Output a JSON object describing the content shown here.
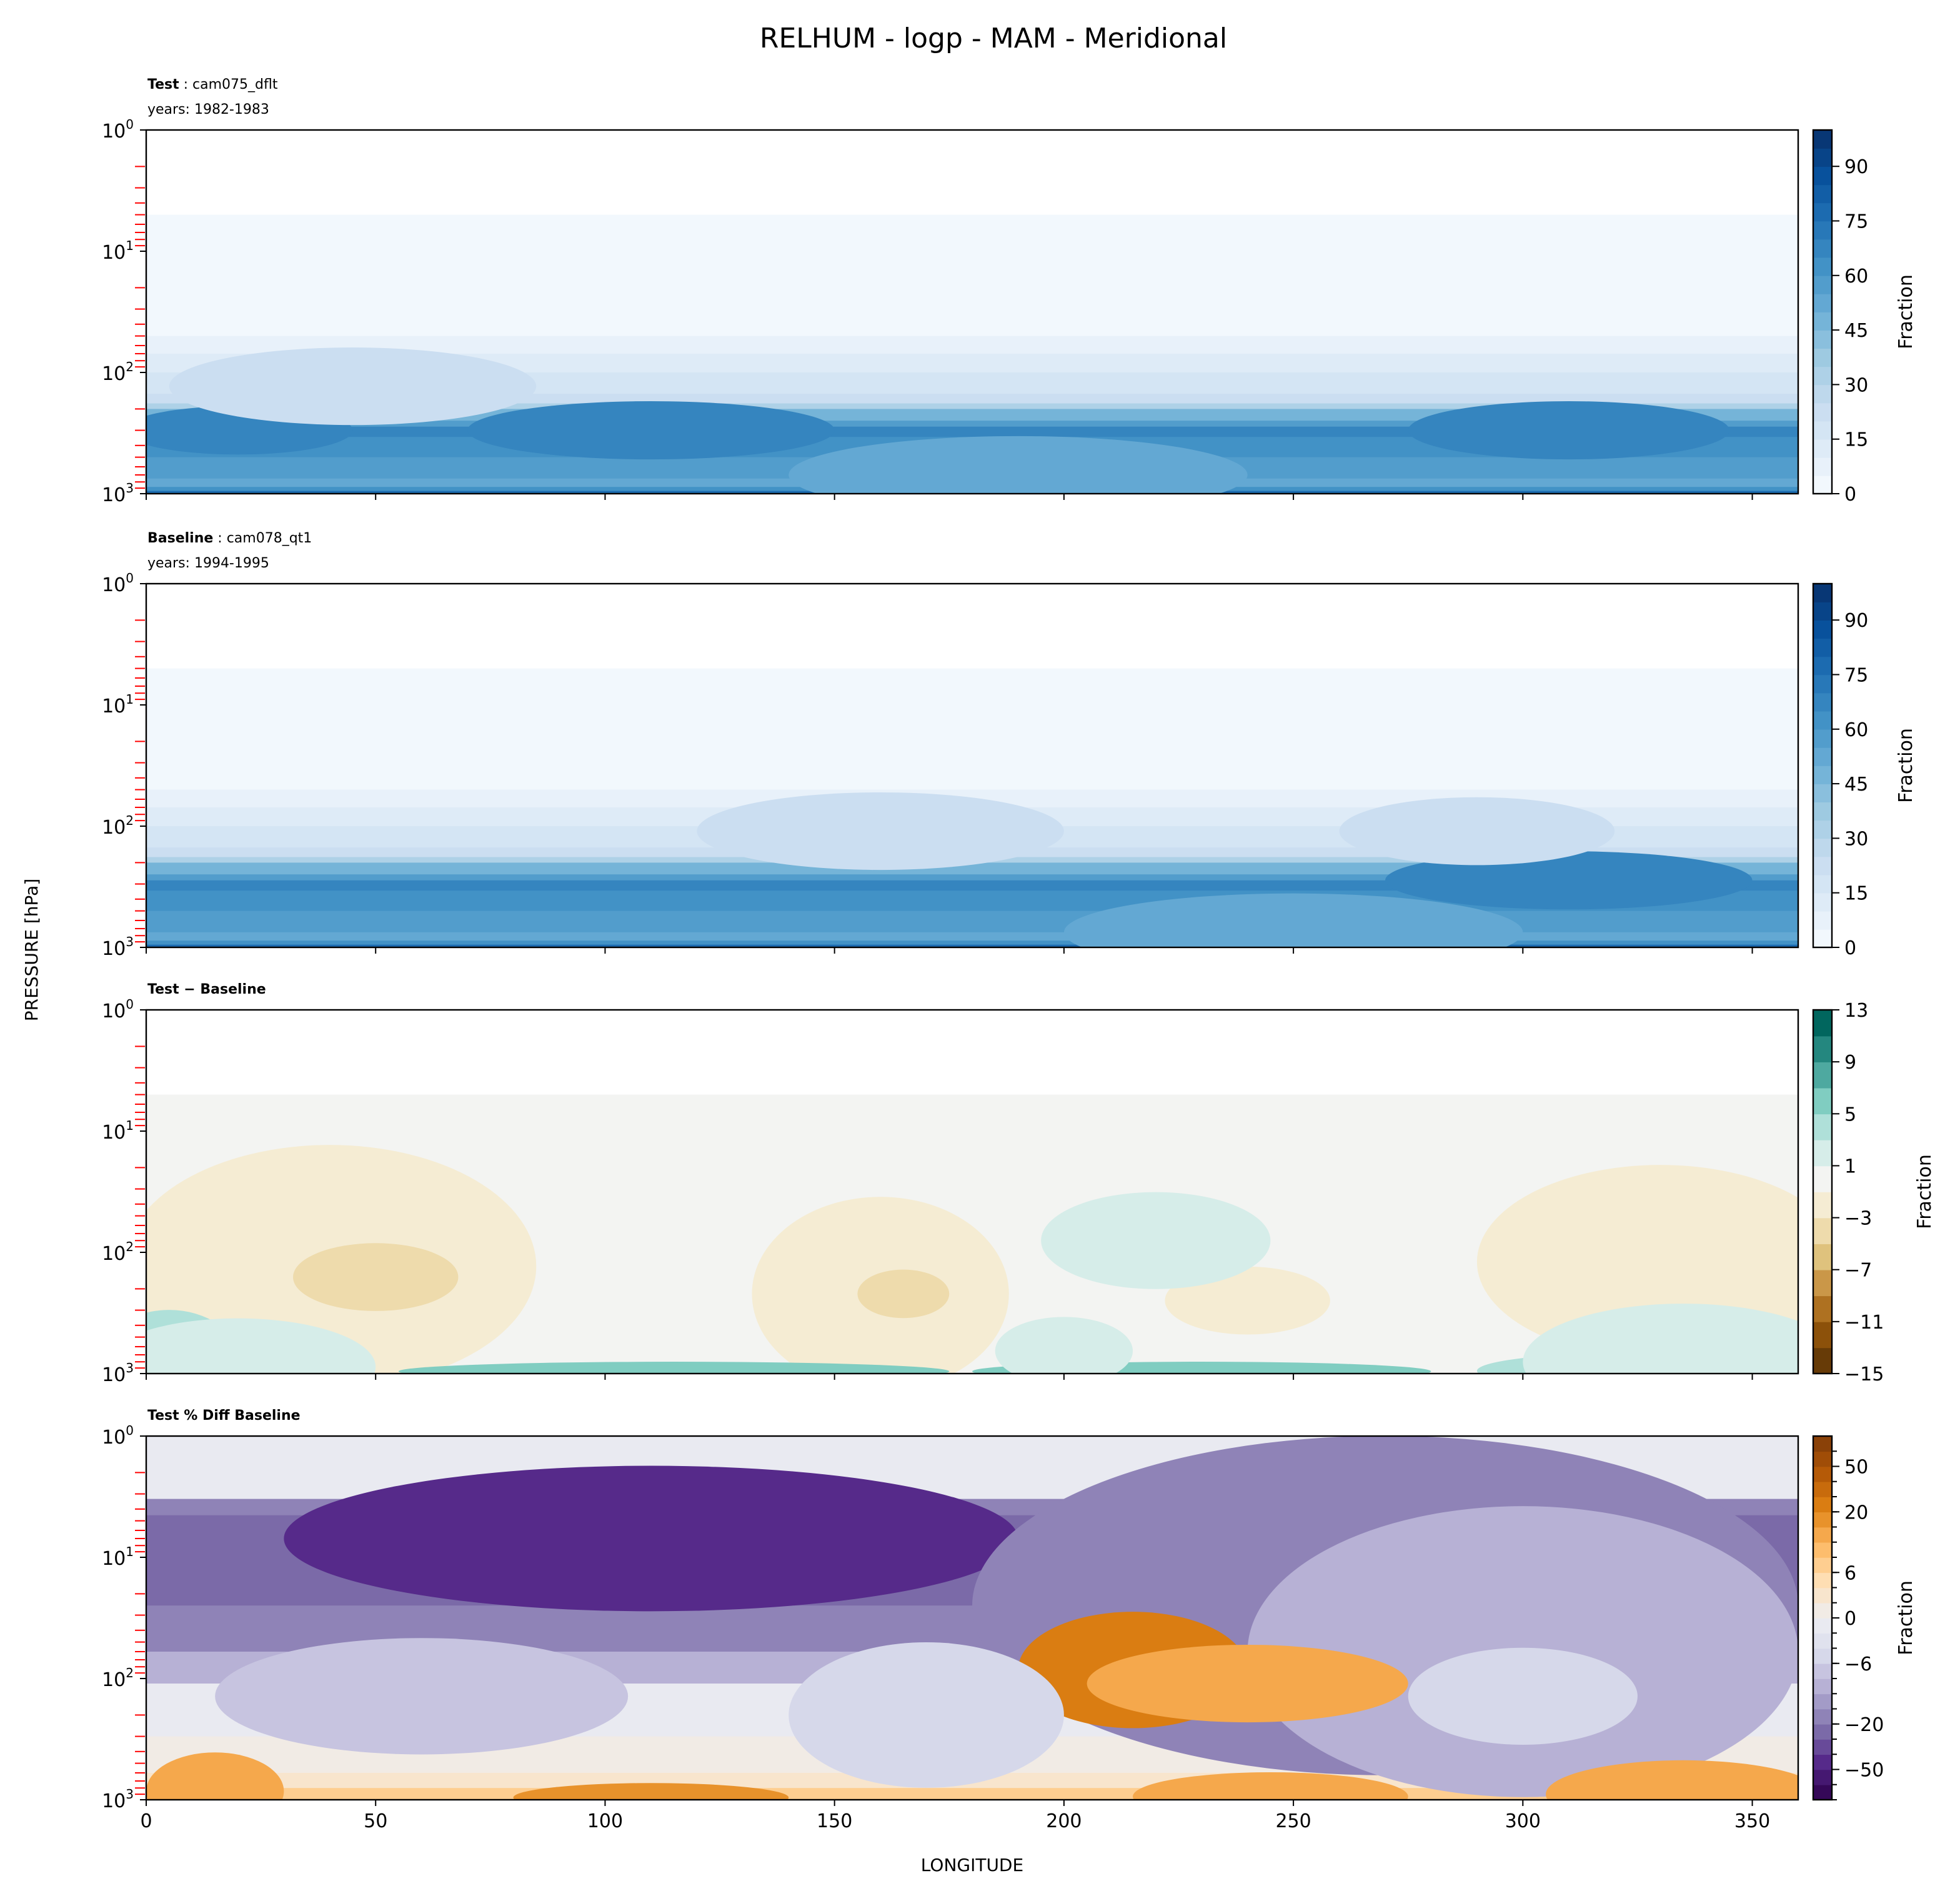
{
  "chart_data": {
    "type": "heatmap",
    "title": "RELHUM - logp - MAM - Meridional",
    "xlabel": "LONGITUDE",
    "ylabel": "PRESSURE [hPa]",
    "xlim": [
      0,
      360
    ],
    "xticks": [
      0,
      50,
      100,
      150,
      200,
      250,
      300,
      350
    ],
    "ylim": [
      1000,
      1
    ],
    "yscale": "log",
    "yticks": [
      {
        "base": "10",
        "exp": "0",
        "value": 1
      },
      {
        "base": "10",
        "exp": "1",
        "value": 10
      },
      {
        "base": "10",
        "exp": "2",
        "value": 100
      },
      {
        "base": "10",
        "exp": "3",
        "value": 1000
      }
    ],
    "panels": [
      {
        "title_bold": "Test",
        "title_rest": " : cam075_dflt",
        "subtitle": "years: 1982-1983",
        "cmap": "blues",
        "clim": [
          0,
          100
        ],
        "levels_step": 5,
        "cbar_ticks": [
          "0",
          "15",
          "30",
          "45",
          "60",
          "75",
          "90"
        ],
        "cbar_tick_values": [
          0,
          15,
          30,
          45,
          60,
          75,
          90
        ],
        "cbar_label": "Fraction",
        "profile": [
          [
            1,
            null
          ],
          [
            5,
            2
          ],
          [
            50,
            6
          ],
          [
            70,
            10
          ],
          [
            100,
            16
          ],
          [
            150,
            22
          ],
          [
            180,
            32
          ],
          [
            200,
            48
          ],
          [
            250,
            58
          ],
          [
            280,
            66
          ],
          [
            340,
            60
          ],
          [
            500,
            58
          ],
          [
            750,
            54
          ],
          [
            880,
            62
          ],
          [
            950,
            75
          ],
          [
            1000,
            88
          ]
        ],
        "features": [
          [
            110,
            300,
            40,
            0.06,
            67
          ],
          [
            20,
            300,
            25,
            0.05,
            66
          ],
          [
            310,
            300,
            35,
            0.06,
            67
          ],
          [
            45,
            130,
            40,
            0.08,
            22
          ],
          [
            190,
            700,
            50,
            0.08,
            50
          ]
        ]
      },
      {
        "title_bold": "Baseline",
        "title_rest": " : cam078_qt1",
        "subtitle": "years: 1994-1995",
        "cmap": "blues",
        "clim": [
          0,
          100
        ],
        "levels_step": 5,
        "cbar_ticks": [
          "0",
          "15",
          "30",
          "45",
          "60",
          "75",
          "90"
        ],
        "cbar_tick_values": [
          0,
          15,
          30,
          45,
          60,
          75,
          90
        ],
        "cbar_label": "Fraction",
        "profile": [
          [
            1,
            null
          ],
          [
            5,
            2
          ],
          [
            50,
            6
          ],
          [
            70,
            10
          ],
          [
            100,
            16
          ],
          [
            150,
            22
          ],
          [
            180,
            32
          ],
          [
            200,
            48
          ],
          [
            250,
            58
          ],
          [
            280,
            66
          ],
          [
            340,
            60
          ],
          [
            500,
            58
          ],
          [
            750,
            54
          ],
          [
            880,
            62
          ],
          [
            950,
            75
          ],
          [
            1000,
            88
          ]
        ],
        "features": [
          [
            310,
            280,
            40,
            0.06,
            67
          ],
          [
            160,
            110,
            40,
            0.08,
            22
          ],
          [
            290,
            110,
            30,
            0.07,
            22
          ],
          [
            250,
            750,
            50,
            0.08,
            50
          ]
        ]
      },
      {
        "title_bold": "Test − Baseline",
        "title_rest": "",
        "subtitle": "",
        "cmap": "brbg",
        "clim": [
          -15,
          13
        ],
        "levels_step": 2,
        "cbar_ticks": [
          "13",
          "9",
          "5",
          "1",
          "−3",
          "−7",
          "−11",
          "−15"
        ],
        "cbar_tick_values": [
          13,
          9,
          5,
          1,
          -3,
          -7,
          -11,
          -15
        ],
        "cbar_label": "Fraction",
        "profile": [
          [
            1,
            null
          ],
          [
            5,
            0
          ],
          [
            1000,
            0
          ]
        ],
        "features": [
          [
            40,
            130,
            45,
            0.25,
            -2.5
          ],
          [
            50,
            160,
            18,
            0.07,
            -5
          ],
          [
            160,
            220,
            28,
            0.2,
            -2.5
          ],
          [
            165,
            220,
            10,
            0.05,
            -5
          ],
          [
            330,
            120,
            40,
            0.2,
            -2.5
          ],
          [
            240,
            250,
            18,
            0.07,
            -2.5
          ],
          [
            220,
            80,
            25,
            0.1,
            2
          ],
          [
            5,
            750,
            15,
            0.1,
            3
          ],
          [
            115,
            960,
            60,
            0.02,
            5
          ],
          [
            230,
            960,
            50,
            0.02,
            5
          ],
          [
            330,
            950,
            40,
            0.04,
            4
          ],
          [
            20,
            880,
            30,
            0.1,
            2
          ],
          [
            335,
            800,
            35,
            0.12,
            2
          ],
          [
            200,
            650,
            15,
            0.07,
            2
          ]
        ]
      },
      {
        "title_bold": "Test % Diff Baseline",
        "title_rest": "",
        "subtitle": "",
        "cmap": "puor",
        "clim": [
          -100,
          100
        ],
        "levels": [
          -100,
          -70,
          -50,
          -40,
          -30,
          -20,
          -15,
          -10,
          -8,
          -6,
          -4,
          -2,
          0,
          2,
          4,
          6,
          8,
          10,
          15,
          20,
          30,
          40,
          50,
          70,
          100
        ],
        "cbar_ticks": [
          "50",
          "20",
          "6",
          "0",
          "−6",
          "−20",
          "−50"
        ],
        "cbar_tick_values": [
          50,
          20,
          6,
          0,
          -6,
          -20,
          -50
        ],
        "cbar_label": "Fraction",
        "profile": [
          [
            1,
            -1
          ],
          [
            3.2,
            -1
          ],
          [
            3.3,
            -20
          ],
          [
            4.5,
            -30
          ],
          [
            8,
            -30
          ],
          [
            25,
            -20
          ],
          [
            60,
            -10
          ],
          [
            110,
            -2
          ],
          [
            300,
            1
          ],
          [
            600,
            3
          ],
          [
            800,
            6
          ],
          [
            1000,
            6
          ]
        ],
        "features": [
          [
            110,
            7,
            80,
            0.15,
            -50
          ],
          [
            270,
            25,
            90,
            0.35,
            -20
          ],
          [
            300,
            60,
            60,
            0.3,
            -10
          ],
          [
            215,
            85,
            25,
            0.12,
            20
          ],
          [
            240,
            110,
            35,
            0.08,
            12
          ],
          [
            60,
            140,
            45,
            0.12,
            -8
          ],
          [
            170,
            200,
            30,
            0.15,
            -6
          ],
          [
            300,
            140,
            25,
            0.1,
            -6
          ],
          [
            110,
            960,
            30,
            0.03,
            15
          ],
          [
            245,
            940,
            30,
            0.05,
            12
          ],
          [
            335,
            900,
            30,
            0.07,
            12
          ],
          [
            15,
            850,
            15,
            0.08,
            10
          ]
        ]
      }
    ]
  }
}
